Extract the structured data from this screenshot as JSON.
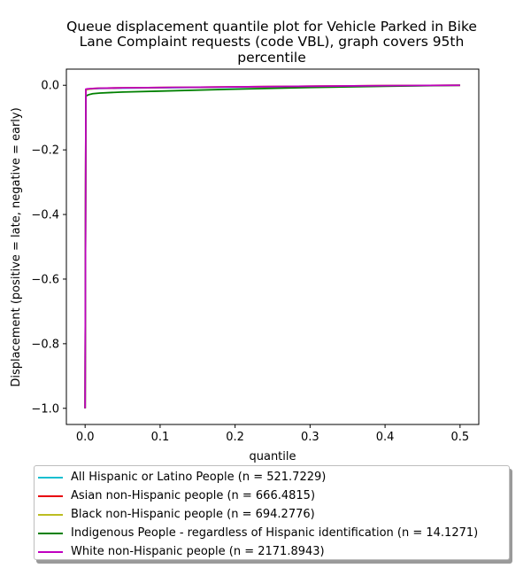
{
  "chart_data": {
    "type": "line",
    "title_lines": [
      "Queue displacement quantile plot for Vehicle Parked in Bike",
      "Lane Complaint  requests (code VBL), graph covers 95th",
      "percentile"
    ],
    "xlabel": "quantile",
    "ylabel": "Displacement (positive = late, negative = early)",
    "xlim": [
      -0.025,
      0.525
    ],
    "ylim": [
      -1.05,
      0.05
    ],
    "x_ticks": [
      0.0,
      0.1,
      0.2,
      0.3,
      0.4,
      0.5
    ],
    "x_tick_labels": [
      "0.0",
      "0.1",
      "0.2",
      "0.3",
      "0.4",
      "0.5"
    ],
    "y_ticks": [
      0.0,
      -0.2,
      -0.4,
      -0.6,
      -0.8,
      -1.0
    ],
    "y_tick_labels": [
      "0.0",
      "−0.2",
      "−0.4",
      "−0.6",
      "−0.8",
      "−1.0"
    ],
    "grid": false,
    "legend_position": "below",
    "series": [
      {
        "name": "All Hispanic or Latino People (n = 521.7229)",
        "color": "#17becf",
        "x": [
          0.0,
          0.001,
          0.003,
          0.01,
          0.02,
          0.05,
          0.1,
          0.2,
          0.3,
          0.4,
          0.5
        ],
        "y": [
          -1.0,
          -0.015,
          -0.013,
          -0.011,
          -0.01,
          -0.009,
          -0.008,
          -0.006,
          -0.004,
          -0.002,
          0.0
        ]
      },
      {
        "name": "Asian non-Hispanic people (n = 666.4815)",
        "color": "#e8000b",
        "x": [
          0.0,
          0.001,
          0.003,
          0.01,
          0.02,
          0.05,
          0.1,
          0.2,
          0.3,
          0.4,
          0.5
        ],
        "y": [
          -1.0,
          -0.014,
          -0.012,
          -0.01,
          -0.009,
          -0.008,
          -0.007,
          -0.005,
          -0.003,
          -0.001,
          0.0
        ]
      },
      {
        "name": "Black non-Hispanic people (n = 694.2776)",
        "color": "#bcbd22",
        "x": [
          0.0,
          0.001,
          0.003,
          0.01,
          0.02,
          0.05,
          0.1,
          0.2,
          0.3,
          0.4,
          0.5
        ],
        "y": [
          -1.0,
          -0.016,
          -0.013,
          -0.011,
          -0.009,
          -0.008,
          -0.007,
          -0.005,
          -0.003,
          -0.001,
          0.0
        ]
      },
      {
        "name": "Indigenous People - regardless of Hispanic identification (n = 14.1271)",
        "color": "#008000",
        "x": [
          0.0,
          0.001,
          0.002,
          0.005,
          0.01,
          0.02,
          0.05,
          0.1,
          0.2,
          0.3,
          0.4,
          0.5
        ],
        "y": [
          -1.0,
          -0.035,
          -0.032,
          -0.029,
          -0.026,
          -0.024,
          -0.021,
          -0.018,
          -0.012,
          -0.007,
          -0.003,
          0.0
        ]
      },
      {
        "name": "White non-Hispanic people (n = 2171.8943)",
        "color": "#c000c0",
        "x": [
          0.0,
          0.001,
          0.003,
          0.01,
          0.02,
          0.05,
          0.1,
          0.2,
          0.3,
          0.4,
          0.5
        ],
        "y": [
          -1.0,
          -0.012,
          -0.011,
          -0.01,
          -0.009,
          -0.008,
          -0.007,
          -0.005,
          -0.003,
          -0.001,
          0.0
        ]
      }
    ]
  }
}
